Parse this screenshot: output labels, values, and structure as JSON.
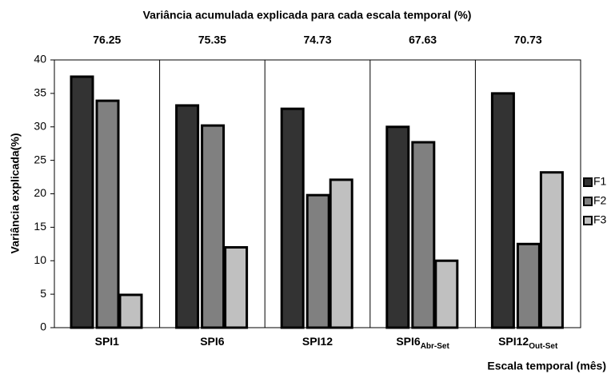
{
  "chart_data": {
    "type": "bar",
    "title": "Variância acumulada explicada para cada escala temporal (%)",
    "group_totals": [
      76.25,
      75.35,
      74.73,
      67.63,
      70.73
    ],
    "categories": [
      "SPI1",
      "SPI6",
      "SPI12",
      "SPI6",
      "SPI12"
    ],
    "category_subscripts": [
      null,
      null,
      null,
      "Abr-Set",
      "Out-Set"
    ],
    "series": [
      {
        "name": "F1",
        "color": "#333333",
        "values": [
          37.5,
          33.2,
          32.7,
          30.0,
          35.0
        ]
      },
      {
        "name": "F2",
        "color": "#808080",
        "values": [
          33.9,
          30.2,
          19.8,
          27.7,
          12.5
        ]
      },
      {
        "name": "F3",
        "color": "#c0c0c0",
        "values": [
          4.9,
          12.0,
          22.1,
          10.0,
          23.2
        ]
      }
    ],
    "ylim": [
      0,
      40
    ],
    "yticks": [
      0,
      5,
      10,
      15,
      20,
      25,
      30,
      35,
      40
    ],
    "y_label": "Variância explicada(%)",
    "x_label": "Escala temporal (mês)",
    "legend": "right"
  }
}
